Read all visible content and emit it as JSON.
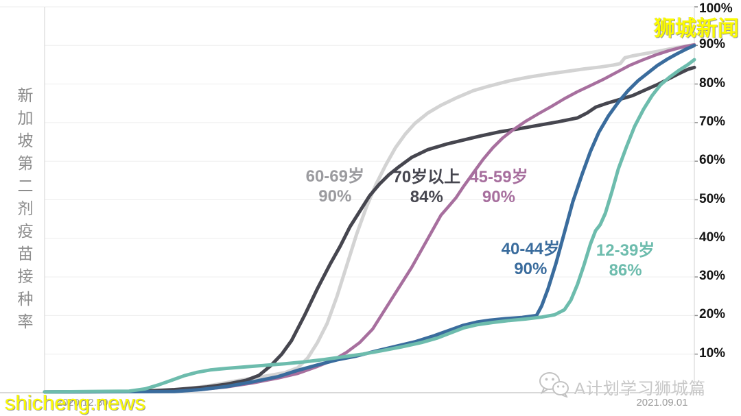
{
  "page_title": "新加坡第二剂疫苗接种率",
  "title_vertical": "新加坡第二剂疫苗接种率",
  "x_axis": {
    "left_label": "2020.12.30",
    "right_label": "2021.09.01",
    "label_color": "#9b9b9b"
  },
  "watermarks": {
    "top_right": "狮城新闻",
    "bottom_left": "shicheng.news",
    "bottom_right_label": "A计划学习狮城篇",
    "bottom_right_icon": "wechat-icon",
    "yellow": "#fbfb00",
    "gray": "#c7c7c7"
  },
  "chart_data": {
    "type": "line",
    "title": "新加坡第二剂疫苗接种率",
    "xlabel": "",
    "ylabel": "",
    "x_range_dates": [
      "2020.12.30",
      "2021.09.01"
    ],
    "ylim": [
      0,
      100
    ],
    "y_ticks": [
      "10%",
      "20%",
      "30%",
      "40%",
      "50%",
      "60%",
      "70%",
      "80%",
      "90%",
      "100%"
    ],
    "grid": true,
    "grid_color": "#ededed",
    "axis_color": "#d8d8d8",
    "tick_color": "#8f8f8f",
    "legend_position": "inline-annotations",
    "series": [
      {
        "name": "60-69岁",
        "final_value": "90%",
        "color": "#d3d3d3",
        "width": 5,
        "points": [
          [
            0,
            0.2
          ],
          [
            17,
            0.3
          ],
          [
            22,
            1
          ],
          [
            26,
            2
          ],
          [
            30,
            3.2
          ],
          [
            34,
            4.3
          ],
          [
            37,
            5.2
          ],
          [
            39,
            6.5
          ],
          [
            40.5,
            9
          ],
          [
            42,
            13
          ],
          [
            43.5,
            18
          ],
          [
            45,
            25
          ],
          [
            46.5,
            33
          ],
          [
            48,
            41
          ],
          [
            49.5,
            48
          ],
          [
            51,
            54
          ],
          [
            52.5,
            59
          ],
          [
            54,
            63.5
          ],
          [
            55.5,
            67
          ],
          [
            57,
            69.8
          ],
          [
            59,
            72.5
          ],
          [
            61,
            74.5
          ],
          [
            63.5,
            76.5
          ],
          [
            66,
            78.3
          ],
          [
            68.5,
            79.5
          ],
          [
            71.5,
            80.8
          ],
          [
            74.5,
            81.8
          ],
          [
            77.5,
            82.6
          ],
          [
            80.5,
            83.3
          ],
          [
            83,
            83.9
          ],
          [
            85.5,
            84.4
          ],
          [
            87.5,
            84.9
          ],
          [
            88.6,
            85.3
          ],
          [
            89.3,
            86.8
          ],
          [
            90.5,
            87.3
          ],
          [
            92.5,
            87.9
          ],
          [
            94.5,
            88.5
          ],
          [
            96.5,
            89.2
          ],
          [
            98.5,
            89.8
          ],
          [
            100,
            90.2
          ]
        ]
      },
      {
        "name": "70岁以上",
        "final_value": "84%",
        "color": "#46464f",
        "width": 5,
        "points": [
          [
            0,
            0.2
          ],
          [
            14,
            0.3
          ],
          [
            20,
            0.8
          ],
          [
            25,
            1.5
          ],
          [
            28,
            2.2
          ],
          [
            31,
            3.2
          ],
          [
            33,
            4.5
          ],
          [
            34.8,
            7
          ],
          [
            36.5,
            10
          ],
          [
            38,
            13.5
          ],
          [
            40,
            20
          ],
          [
            42,
            27
          ],
          [
            44,
            33.5
          ],
          [
            45.5,
            38
          ],
          [
            47,
            43
          ],
          [
            48.5,
            47
          ],
          [
            50,
            51
          ],
          [
            51.5,
            54
          ],
          [
            53,
            56.5
          ],
          [
            54.5,
            58.5
          ],
          [
            56.5,
            61
          ],
          [
            59,
            63
          ],
          [
            62,
            64.5
          ],
          [
            65,
            65.7
          ],
          [
            67,
            66.5
          ],
          [
            70,
            67.6
          ],
          [
            73,
            68.4
          ],
          [
            76,
            69.3
          ],
          [
            79,
            70.2
          ],
          [
            82,
            71.2
          ],
          [
            83.5,
            72.5
          ],
          [
            84.8,
            74
          ],
          [
            86.5,
            75
          ],
          [
            88.5,
            76
          ],
          [
            90.5,
            77
          ],
          [
            92.5,
            78.5
          ],
          [
            94.5,
            80
          ],
          [
            96,
            81.3
          ],
          [
            97.5,
            82.6
          ],
          [
            99,
            83.8
          ],
          [
            100,
            84.3
          ]
        ]
      },
      {
        "name": "45-59岁",
        "final_value": "90%",
        "color": "#a76f9e",
        "width": 4.5,
        "points": [
          [
            0,
            0.2
          ],
          [
            20,
            0.3
          ],
          [
            24,
            0.8
          ],
          [
            28,
            1.5
          ],
          [
            32,
            2.5
          ],
          [
            36,
            3.8
          ],
          [
            39,
            5
          ],
          [
            42,
            6.8
          ],
          [
            44.5,
            8.5
          ],
          [
            46.5,
            10.5
          ],
          [
            48.5,
            13
          ],
          [
            50.5,
            16.5
          ],
          [
            52,
            20.5
          ],
          [
            53.5,
            24.5
          ],
          [
            55,
            28.5
          ],
          [
            56.5,
            32.5
          ],
          [
            58,
            37
          ],
          [
            59.5,
            41.5
          ],
          [
            61,
            46
          ],
          [
            62.3,
            48.5
          ],
          [
            63.3,
            50.5
          ],
          [
            64.5,
            53.5
          ],
          [
            66,
            57
          ],
          [
            67.5,
            60.5
          ],
          [
            69,
            63.5
          ],
          [
            70.5,
            66
          ],
          [
            72,
            68
          ],
          [
            74,
            70.3
          ],
          [
            76,
            72.3
          ],
          [
            78,
            74.2
          ],
          [
            80,
            76.2
          ],
          [
            82,
            78
          ],
          [
            84,
            79.6
          ],
          [
            86,
            81.2
          ],
          [
            88,
            83
          ],
          [
            90,
            84.8
          ],
          [
            92,
            86.2
          ],
          [
            94,
            87.5
          ],
          [
            96,
            88.6
          ],
          [
            98,
            89.5
          ],
          [
            100,
            90.2
          ]
        ]
      },
      {
        "name": "40-44岁",
        "final_value": "90%",
        "color": "#3a6c9d",
        "width": 5,
        "points": [
          [
            0,
            0.2
          ],
          [
            20,
            0.3
          ],
          [
            24,
            0.8
          ],
          [
            28,
            1.6
          ],
          [
            32,
            2.8
          ],
          [
            36,
            4.2
          ],
          [
            39,
            5.8
          ],
          [
            42,
            7.2
          ],
          [
            45,
            8.5
          ],
          [
            48,
            9.5
          ],
          [
            51,
            10.8
          ],
          [
            54,
            12
          ],
          [
            57,
            13.2
          ],
          [
            60,
            14.8
          ],
          [
            62.5,
            16.3
          ],
          [
            64.5,
            17.5
          ],
          [
            66.5,
            18.3
          ],
          [
            68.5,
            18.8
          ],
          [
            71,
            19.2
          ],
          [
            73.5,
            19.5
          ],
          [
            75.7,
            20
          ],
          [
            76.5,
            22.5
          ],
          [
            77.5,
            27
          ],
          [
            78.7,
            33.5
          ],
          [
            80,
            41.5
          ],
          [
            81.3,
            49.5
          ],
          [
            82.7,
            56.5
          ],
          [
            84,
            62.5
          ],
          [
            85.3,
            67.5
          ],
          [
            86.8,
            71.8
          ],
          [
            88.3,
            75.3
          ],
          [
            89.8,
            78.3
          ],
          [
            91.3,
            80.8
          ],
          [
            92.8,
            82.8
          ],
          [
            94.3,
            84.8
          ],
          [
            95.8,
            86.4
          ],
          [
            97.3,
            87.8
          ],
          [
            98.7,
            89
          ],
          [
            100,
            90
          ]
        ]
      },
      {
        "name": "12-39岁",
        "final_value": "86%",
        "color": "#6dbcad",
        "width": 5,
        "points": [
          [
            0,
            0.2
          ],
          [
            13,
            0.4
          ],
          [
            15.5,
            1
          ],
          [
            17.5,
            2
          ],
          [
            19.5,
            3.2
          ],
          [
            21.5,
            4.4
          ],
          [
            23.5,
            5.3
          ],
          [
            25.5,
            5.9
          ],
          [
            28,
            6.3
          ],
          [
            31,
            6.7
          ],
          [
            34,
            7.1
          ],
          [
            37,
            7.5
          ],
          [
            40,
            8
          ],
          [
            43,
            8.6
          ],
          [
            46,
            9.3
          ],
          [
            49,
            10
          ],
          [
            52,
            10.9
          ],
          [
            55,
            11.9
          ],
          [
            58,
            13
          ],
          [
            60.5,
            14.2
          ],
          [
            62.5,
            15.5
          ],
          [
            64.5,
            16.8
          ],
          [
            66.5,
            17.6
          ],
          [
            69,
            18.2
          ],
          [
            71.5,
            18.7
          ],
          [
            74,
            19.1
          ],
          [
            76.5,
            19.6
          ],
          [
            78.5,
            20.2
          ],
          [
            80,
            21.5
          ],
          [
            81,
            24
          ],
          [
            82,
            28
          ],
          [
            83,
            33
          ],
          [
            84,
            38.5
          ],
          [
            84.8,
            42
          ],
          [
            85.5,
            43.5
          ],
          [
            86.3,
            46.5
          ],
          [
            87.3,
            52
          ],
          [
            88.3,
            58
          ],
          [
            89.5,
            63.5
          ],
          [
            90.8,
            69
          ],
          [
            92.2,
            73.5
          ],
          [
            93.5,
            77
          ],
          [
            94.8,
            79.8
          ],
          [
            96.2,
            81.8
          ],
          [
            97.6,
            83.5
          ],
          [
            99,
            85
          ],
          [
            100,
            86.3
          ]
        ]
      }
    ],
    "annotations": [
      {
        "line1": "60-69岁",
        "line2": "90%",
        "color": "#9b9b9f",
        "x": 44.7,
        "y": 53.5
      },
      {
        "line1": "70岁以上",
        "line2": "84%",
        "color": "#46464f",
        "x": 58.8,
        "y": 53.3
      },
      {
        "line1": "45-59岁",
        "line2": "90%",
        "color": "#a76f9e",
        "x": 69.9,
        "y": 53.3
      },
      {
        "line1": "40-44岁",
        "line2": "90%",
        "color": "#3a6c9d",
        "x": 74.8,
        "y": 34.7
      },
      {
        "line1": "12-39岁",
        "line2": "86%",
        "color": "#6dbcad",
        "x": 89.4,
        "y": 34.2
      }
    ]
  }
}
